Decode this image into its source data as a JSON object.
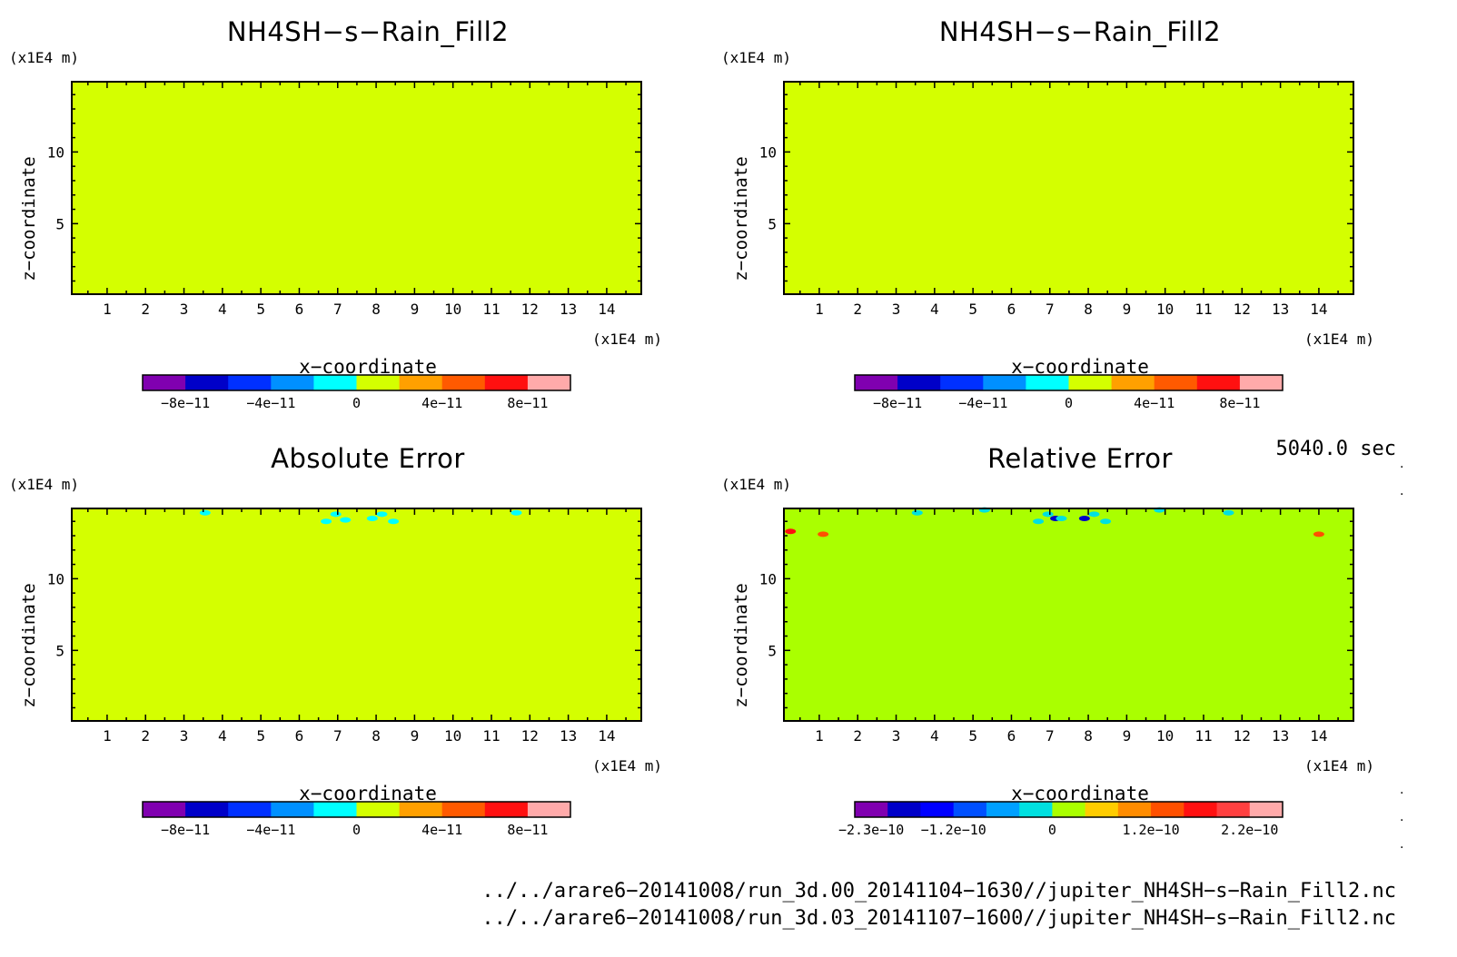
{
  "panels": [
    {
      "title": "NH4SH−s−Rain_Fill2",
      "y_unit": "(x1E4 m)",
      "x_unit": "(x1E4 m)",
      "xlabel": "x−coordinate",
      "ylabel": "z−coordinate",
      "field_color": "#d4ff00",
      "colorbar": {
        "colors": [
          "#8000b0",
          "#0000c8",
          "#0030ff",
          "#0090ff",
          "#00ffff",
          "#d4ff00",
          "#ffa000",
          "#ff5a00",
          "#ff1010",
          "#ffaaaa"
        ],
        "labels": [
          "−8e−11",
          "−4e−11",
          "0",
          "4e−11",
          "8e−11"
        ]
      }
    },
    {
      "title": "NH4SH−s−Rain_Fill2",
      "y_unit": "(x1E4 m)",
      "x_unit": "(x1E4 m)",
      "xlabel": "x−coordinate",
      "ylabel": "z−coordinate",
      "field_color": "#d4ff00",
      "colorbar": {
        "colors": [
          "#8000b0",
          "#0000c8",
          "#0030ff",
          "#0090ff",
          "#00ffff",
          "#d4ff00",
          "#ffa000",
          "#ff5a00",
          "#ff1010",
          "#ffaaaa"
        ],
        "labels": [
          "−8e−11",
          "−4e−11",
          "0",
          "4e−11",
          "8e−11"
        ]
      }
    },
    {
      "title": "Absolute Error",
      "y_unit": "(x1E4 m)",
      "x_unit": "(x1E4 m)",
      "xlabel": "x−coordinate",
      "ylabel": "z−coordinate",
      "field_color": "#d4ff00",
      "colorbar": {
        "colors": [
          "#8000b0",
          "#0000c8",
          "#0030ff",
          "#0090ff",
          "#00ffff",
          "#d4ff00",
          "#ffa000",
          "#ff5a00",
          "#ff1010",
          "#ffaaaa"
        ],
        "labels": [
          "−8e−11",
          "−4e−11",
          "0",
          "4e−11",
          "8e−11"
        ]
      }
    },
    {
      "title": "Relative Error",
      "y_unit": "(x1E4 m)",
      "x_unit": "(x1E4 m)",
      "xlabel": "x−coordinate",
      "ylabel": "z−coordinate",
      "field_color": "#aaff00",
      "colorbar": {
        "colors": [
          "#8000b0",
          "#0000c8",
          "#0000ff",
          "#0050ff",
          "#00a0ff",
          "#00e0e0",
          "#aaff00",
          "#ffcc00",
          "#ff8c00",
          "#ff5000",
          "#ff1010",
          "#ff4040",
          "#ffaaaa"
        ],
        "labels": [
          "−2.3e−10",
          "−1.2e−10",
          "0",
          "1.2e−10",
          "2.2e−10"
        ]
      }
    }
  ],
  "time_label": "5040.0 sec",
  "files": [
    "../../arare6−20141008/run_3d.00_20141104−1630//jupiter_NH4SH−s−Rain_Fill2.nc",
    "../../arare6−20141008/run_3d.03_20141107−1600//jupiter_NH4SH−s−Rain_Fill2.nc"
  ],
  "chart_data": [
    {
      "type": "heatmap",
      "title": "NH4SH−s−Rain_Fill2",
      "xlabel": "x−coordinate",
      "ylabel": "z−coordinate",
      "x_ticks": [
        1,
        2,
        3,
        4,
        5,
        6,
        7,
        8,
        9,
        10,
        11,
        12,
        13,
        14
      ],
      "y_ticks": [
        5,
        10
      ],
      "xlim": [
        0.08,
        14.9
      ],
      "ylim": [
        0.08,
        14.9
      ],
      "uniform_value": 0,
      "colorbar_ticks": [
        "−8e−11",
        "−4e−11",
        "0",
        "4e−11",
        "8e−11"
      ],
      "blobs": []
    },
    {
      "type": "heatmap",
      "title": "NH4SH−s−Rain_Fill2",
      "xlabel": "x−coordinate",
      "ylabel": "z−coordinate",
      "x_ticks": [
        1,
        2,
        3,
        4,
        5,
        6,
        7,
        8,
        9,
        10,
        11,
        12,
        13,
        14
      ],
      "y_ticks": [
        5,
        10
      ],
      "xlim": [
        0.08,
        14.9
      ],
      "ylim": [
        0.08,
        14.9
      ],
      "uniform_value": 0,
      "colorbar_ticks": [
        "−8e−11",
        "−4e−11",
        "0",
        "4e−11",
        "8e−11"
      ],
      "blobs": []
    },
    {
      "type": "heatmap",
      "title": "Absolute Error",
      "xlabel": "x−coordinate",
      "ylabel": "z−coordinate",
      "x_ticks": [
        1,
        2,
        3,
        4,
        5,
        6,
        7,
        8,
        9,
        10,
        11,
        12,
        13,
        14
      ],
      "y_ticks": [
        5,
        10
      ],
      "xlim": [
        0.08,
        14.9
      ],
      "ylim": [
        0.08,
        14.9
      ],
      "uniform_value": 0,
      "colorbar_ticks": [
        "−8e−11",
        "−4e−11",
        "0",
        "4e−11",
        "8e−11"
      ],
      "blobs": [
        {
          "x": 3.55,
          "z": 14.6,
          "color": "#00ffff"
        },
        {
          "x": 6.7,
          "z": 14.0,
          "color": "#00ffff"
        },
        {
          "x": 6.95,
          "z": 14.5,
          "color": "#00ffff"
        },
        {
          "x": 7.2,
          "z": 14.1,
          "color": "#00ffff"
        },
        {
          "x": 7.9,
          "z": 14.2,
          "color": "#00ffff"
        },
        {
          "x": 8.15,
          "z": 14.5,
          "color": "#00ffff"
        },
        {
          "x": 8.45,
          "z": 14.0,
          "color": "#00ffff"
        },
        {
          "x": 11.65,
          "z": 14.6,
          "color": "#00ffff"
        }
      ]
    },
    {
      "type": "heatmap",
      "title": "Relative Error",
      "xlabel": "x−coordinate",
      "ylabel": "z−coordinate",
      "x_ticks": [
        1,
        2,
        3,
        4,
        5,
        6,
        7,
        8,
        9,
        10,
        11,
        12,
        13,
        14
      ],
      "y_ticks": [
        5,
        10
      ],
      "xlim": [
        0.08,
        14.9
      ],
      "ylim": [
        0.08,
        14.9
      ],
      "uniform_value": 0,
      "colorbar_ticks": [
        "−2.3e−10",
        "−1.2e−10",
        "0",
        "1.2e−10",
        "2.2e−10"
      ],
      "blobs": [
        {
          "x": 0.25,
          "z": 13.3,
          "color": "#ff1010"
        },
        {
          "x": 1.1,
          "z": 13.1,
          "color": "#ff5000"
        },
        {
          "x": 3.55,
          "z": 14.6,
          "color": "#00e0e0"
        },
        {
          "x": 5.3,
          "z": 14.8,
          "color": "#00e0e0"
        },
        {
          "x": 6.7,
          "z": 14.0,
          "color": "#00e0e0"
        },
        {
          "x": 6.95,
          "z": 14.5,
          "color": "#00e0e0"
        },
        {
          "x": 7.15,
          "z": 14.2,
          "color": "#0000c8"
        },
        {
          "x": 7.3,
          "z": 14.2,
          "color": "#00e0e0"
        },
        {
          "x": 7.9,
          "z": 14.2,
          "color": "#0000c8"
        },
        {
          "x": 8.15,
          "z": 14.5,
          "color": "#00e0e0"
        },
        {
          "x": 8.45,
          "z": 14.0,
          "color": "#00e0e0"
        },
        {
          "x": 9.85,
          "z": 14.8,
          "color": "#00e0e0"
        },
        {
          "x": 11.65,
          "z": 14.6,
          "color": "#00e0e0"
        },
        {
          "x": 14.0,
          "z": 13.1,
          "color": "#ff5000"
        }
      ]
    }
  ]
}
